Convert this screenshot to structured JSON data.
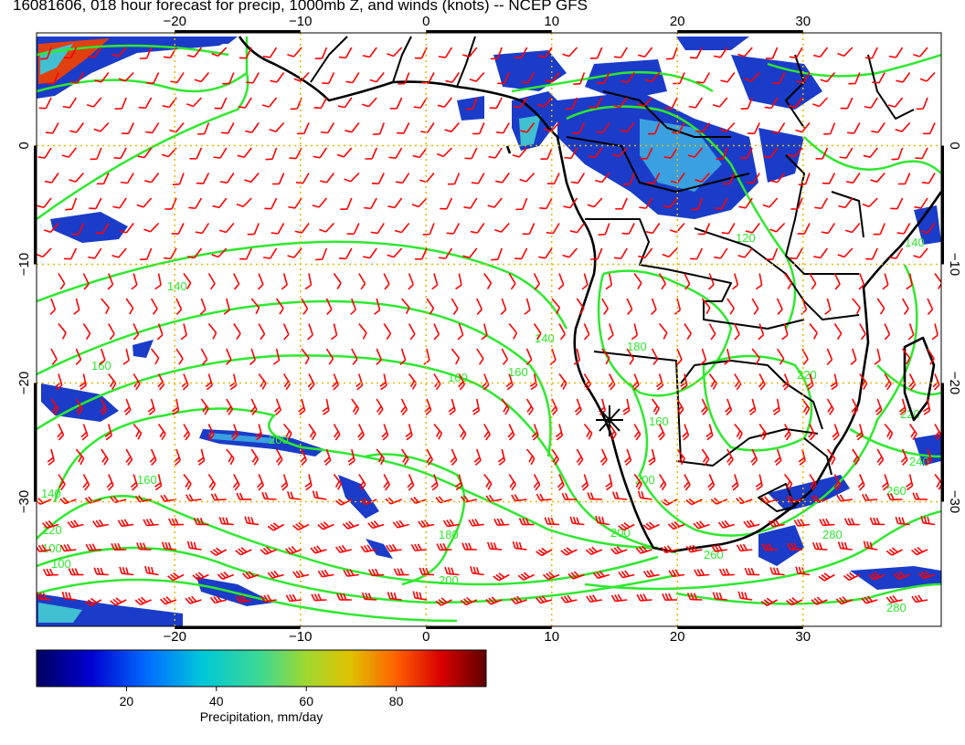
{
  "title": "16081606, 018 hour forecast for precip, 1000mb Z, and winds (knots) -- NCEP GFS",
  "map": {
    "lon_range": [
      -31,
      41
    ],
    "lat_range": [
      -40.5,
      9.5
    ],
    "lon_ticks": [
      -20,
      -10,
      0,
      10,
      20,
      30
    ],
    "lat_ticks": [
      0,
      -10,
      -20,
      -30
    ],
    "grid_color": "#e6b800",
    "contour_color": "#2ee82e",
    "barb_color": "#ff0000",
    "coast_color": "#000000",
    "contour_labels": [
      "100",
      "120",
      "140",
      "160",
      "180",
      "200",
      "220",
      "240",
      "260",
      "280"
    ]
  },
  "colorbar": {
    "label": "Precipitation, mm/day",
    "ticks": [
      "20",
      "40",
      "60",
      "80"
    ],
    "tick_values": [
      20,
      40,
      60,
      80
    ],
    "range": [
      0,
      100
    ],
    "colors": [
      "#000080",
      "#0000ff",
      "#0080ff",
      "#00d0d0",
      "#40e080",
      "#a0e020",
      "#e0d000",
      "#ff8000",
      "#e00000",
      "#800000"
    ]
  }
}
